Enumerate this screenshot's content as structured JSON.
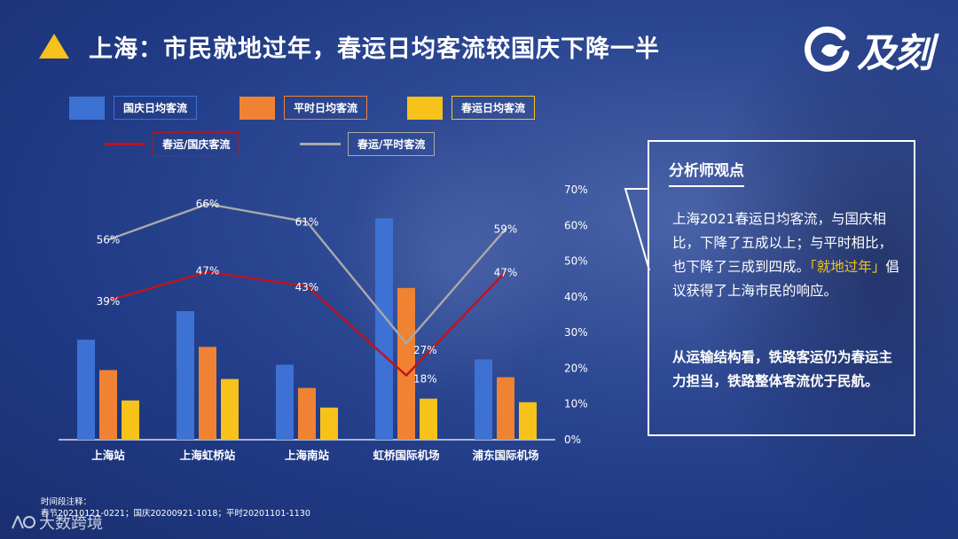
{
  "header": {
    "title": "上海：市民就地过年，春运日均客流较国庆下降一半"
  },
  "logo": {
    "text": "及刻",
    "icon": "bird-circle-logo-icon"
  },
  "legend": {
    "items": [
      {
        "label": "国庆日均客流",
        "color": "#3d72d4"
      },
      {
        "label": "平时日均客流",
        "color": "#ef8333"
      },
      {
        "label": "春运日均客流",
        "color": "#f7c21a"
      },
      {
        "label": "春运/国庆客流",
        "color": "#c0131c"
      },
      {
        "label": "春运/平时客流",
        "color": "#a9a9a9"
      }
    ]
  },
  "chart_data": {
    "type": "bar",
    "categories": [
      "上海站",
      "上海虹桥站",
      "上海南站",
      "虹桥国际机场",
      "浦东国际机场"
    ],
    "bar_series": [
      {
        "name": "国庆日均客流",
        "color": "#3d72d4",
        "values": [
          28,
          36,
          21,
          62,
          22.5
        ]
      },
      {
        "name": "平时日均客流",
        "color": "#ef8333",
        "values": [
          19.5,
          26,
          14.5,
          42.5,
          17.5
        ]
      },
      {
        "name": "春运日均客流",
        "color": "#f7c21a",
        "values": [
          11,
          17,
          9,
          11.5,
          10.5
        ]
      }
    ],
    "line_series": [
      {
        "name": "春运/国庆客流",
        "color": "#c0131c",
        "values": [
          39,
          47,
          43,
          18,
          47
        ],
        "labels": [
          "39%",
          "47%",
          "43%",
          "18%",
          "47%"
        ]
      },
      {
        "name": "春运/平时客流",
        "color": "#a9a9a9",
        "values": [
          56,
          66,
          61,
          27,
          59
        ],
        "labels": [
          "56%",
          "66%",
          "61%",
          "27%",
          "59%"
        ]
      }
    ],
    "y_right": {
      "min": 0,
      "max": 70,
      "ticks": [
        0,
        10,
        20,
        30,
        40,
        50,
        60,
        70
      ],
      "tick_labels": [
        "0%",
        "10%",
        "20%",
        "30%",
        "40%",
        "50%",
        "60%",
        "70%"
      ]
    },
    "grid": false,
    "legend_position": "top-left"
  },
  "panel": {
    "title": "分析师观点",
    "p1_before": "上海2021春运日均客流，与国庆相比，下降了五成以上；与平时相比，也下降了三成到四成。",
    "p1_highlight": "「就地过年」",
    "p1_after": "倡议获得了上海市民的响应。",
    "p2": "从运输结构看，铁路客运仍为春运主力担当，铁路整体客流优于民航。"
  },
  "footer": {
    "note_title": "时间段注释：",
    "note_body": "春节20210121-0221；国庆20200921-1018；平时20201101-1130",
    "watermark": "大数跨境"
  }
}
